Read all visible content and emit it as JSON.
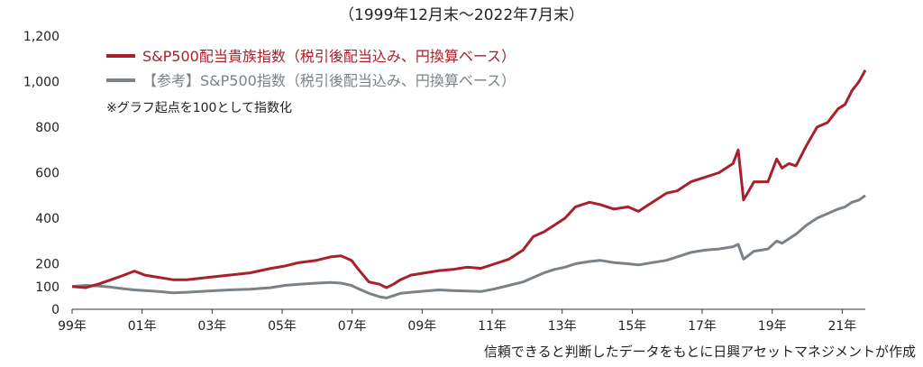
{
  "chart_data": {
    "type": "line",
    "title": "（1999年12月末～2022年7月末）",
    "source": "信頼できると判断したデータをもとに日興アセットマネジメントが作成",
    "note": "※グラフ起点を100として指数化",
    "ylim": [
      0,
      1200
    ],
    "yticks": [
      "0",
      "100",
      "200",
      "400",
      "600",
      "800",
      "1,000",
      "1,200"
    ],
    "ytick_values": [
      0,
      100,
      200,
      400,
      600,
      800,
      1000,
      1200
    ],
    "xlim": [
      1999.92,
      2022.58
    ],
    "xticks": [
      "99年",
      "01年",
      "03年",
      "05年",
      "07年",
      "09年",
      "11年",
      "13年",
      "15年",
      "17年",
      "19年",
      "21年"
    ],
    "xtick_values": [
      1999.92,
      2001.92,
      2003.92,
      2005.92,
      2007.92,
      2009.92,
      2011.92,
      2013.92,
      2015.92,
      2017.92,
      2019.92,
      2021.92
    ],
    "grid": false,
    "legend_position": "top-left",
    "series": [
      {
        "name": "S&P500配当貴族指数（税引後配当込み、円換算ベース）",
        "color": "#a8202c",
        "x": [
          1999.92,
          2000.3,
          2000.7,
          2001.0,
          2001.4,
          2001.7,
          2002.0,
          2002.4,
          2002.8,
          2003.2,
          2003.8,
          2004.4,
          2005.0,
          2005.6,
          2006.0,
          2006.4,
          2006.9,
          2007.3,
          2007.6,
          2007.9,
          2008.1,
          2008.4,
          2008.7,
          2008.9,
          2009.1,
          2009.3,
          2009.6,
          2010.0,
          2010.4,
          2010.8,
          2011.2,
          2011.6,
          2012.0,
          2012.4,
          2012.8,
          2013.1,
          2013.4,
          2013.7,
          2014.0,
          2014.3,
          2014.7,
          2015.0,
          2015.4,
          2015.8,
          2016.1,
          2016.5,
          2016.9,
          2017.2,
          2017.6,
          2018.0,
          2018.4,
          2018.8,
          2018.95,
          2019.1,
          2019.4,
          2019.8,
          2020.05,
          2020.2,
          2020.4,
          2020.6,
          2020.9,
          2021.2,
          2021.5,
          2021.8,
          2022.0,
          2022.2,
          2022.4,
          2022.58
        ],
        "values": [
          100,
          95,
          112,
          128,
          150,
          168,
          150,
          140,
          130,
          130,
          140,
          150,
          160,
          180,
          190,
          205,
          215,
          230,
          235,
          215,
          175,
          120,
          110,
          95,
          110,
          130,
          150,
          160,
          170,
          175,
          185,
          180,
          200,
          220,
          260,
          320,
          340,
          370,
          400,
          450,
          470,
          460,
          440,
          450,
          430,
          470,
          510,
          520,
          560,
          580,
          600,
          640,
          700,
          480,
          560,
          560,
          660,
          620,
          640,
          630,
          720,
          800,
          820,
          880,
          900,
          960,
          1000,
          1050
        ]
      },
      {
        "name": "【参考】S&P500指数（税引後配当込み、円換算ベース）",
        "color": "#7a8287",
        "x": [
          1999.92,
          2000.3,
          2000.7,
          2001.0,
          2001.4,
          2001.7,
          2002.0,
          2002.4,
          2002.8,
          2003.2,
          2003.8,
          2004.4,
          2005.0,
          2005.6,
          2006.0,
          2006.4,
          2006.9,
          2007.3,
          2007.6,
          2007.9,
          2008.1,
          2008.4,
          2008.7,
          2008.9,
          2009.1,
          2009.3,
          2009.6,
          2010.0,
          2010.4,
          2010.8,
          2011.2,
          2011.6,
          2012.0,
          2012.4,
          2012.8,
          2013.1,
          2013.4,
          2013.7,
          2014.0,
          2014.3,
          2014.7,
          2015.0,
          2015.4,
          2015.8,
          2016.1,
          2016.5,
          2016.9,
          2017.2,
          2017.6,
          2018.0,
          2018.4,
          2018.8,
          2018.95,
          2019.1,
          2019.4,
          2019.8,
          2020.05,
          2020.2,
          2020.4,
          2020.6,
          2020.9,
          2021.2,
          2021.5,
          2021.8,
          2022.0,
          2022.2,
          2022.4,
          2022.58
        ],
        "values": [
          100,
          105,
          102,
          98,
          90,
          85,
          82,
          78,
          72,
          75,
          80,
          85,
          88,
          95,
          105,
          110,
          115,
          118,
          115,
          105,
          90,
          70,
          55,
          50,
          60,
          70,
          75,
          80,
          85,
          82,
          80,
          78,
          90,
          105,
          120,
          140,
          160,
          175,
          185,
          200,
          210,
          215,
          205,
          200,
          195,
          205,
          215,
          230,
          250,
          260,
          265,
          275,
          285,
          220,
          255,
          265,
          300,
          290,
          310,
          330,
          370,
          400,
          420,
          440,
          450,
          470,
          480,
          500
        ]
      }
    ]
  }
}
